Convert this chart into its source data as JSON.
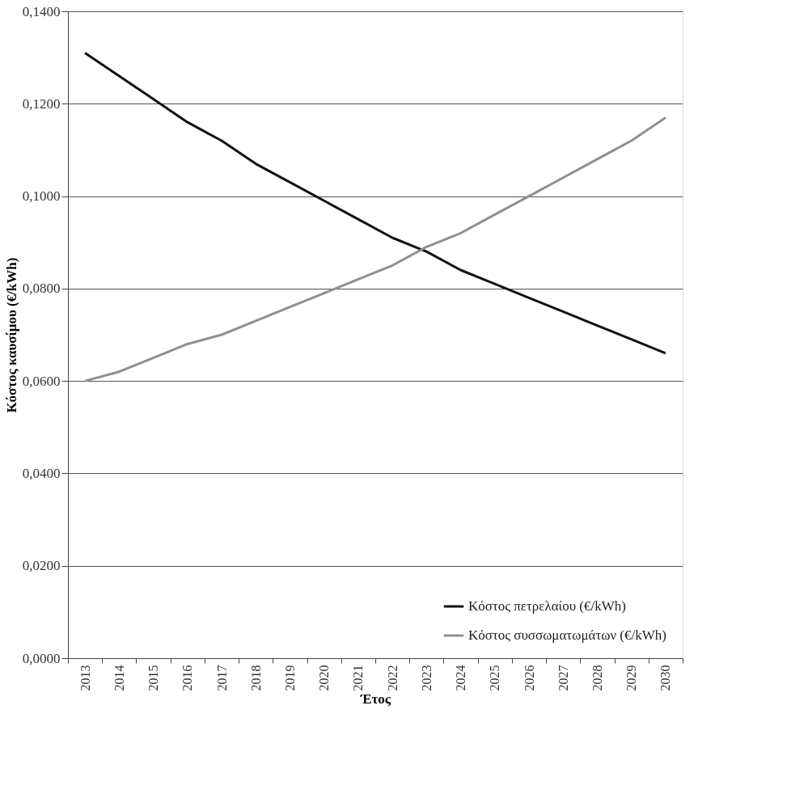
{
  "chart_data": {
    "type": "line",
    "xlabel": "Έτος",
    "ylabel": "Κόστος καυσίμου (€/kWh)",
    "categories": [
      "2013",
      "2014",
      "2015",
      "2016",
      "2017",
      "2018",
      "2019",
      "2020",
      "2021",
      "2022",
      "2023",
      "2024",
      "2025",
      "2026",
      "2027",
      "2028",
      "2029",
      "2030"
    ],
    "series": [
      {
        "name": "Κόστος πετρελαίου (€/kWh)",
        "color": "#111111",
        "values": [
          0.131,
          0.126,
          0.121,
          0.116,
          0.112,
          0.107,
          0.103,
          0.099,
          0.095,
          0.091,
          0.088,
          0.084,
          0.081,
          0.078,
          0.075,
          0.072,
          0.069,
          0.066
        ]
      },
      {
        "name": "Κόστος συσσωματωμάτων (€/kWh)",
        "color": "#8c9096",
        "values": [
          0.06,
          0.062,
          0.065,
          0.068,
          0.07,
          0.073,
          0.076,
          0.079,
          0.082,
          0.085,
          0.089,
          0.092,
          0.096,
          0.1,
          0.104,
          0.108,
          0.112,
          0.117
        ]
      }
    ],
    "ylim": [
      0,
      0.14
    ],
    "yticks": [
      {
        "value": 0,
        "label": "0,0000"
      },
      {
        "value": 0.02,
        "label": "0,0200"
      },
      {
        "value": 0.04,
        "label": "0,0400"
      },
      {
        "value": 0.06,
        "label": "0,0600"
      },
      {
        "value": 0.08,
        "label": "0,0800"
      },
      {
        "value": 0.1,
        "label": "0,1000"
      },
      {
        "value": 0.12,
        "label": "0,1200"
      },
      {
        "value": 0.14,
        "label": "0,1400"
      }
    ],
    "grid": "y",
    "legend": "bottom right",
    "marker": "none",
    "line_style": "solid"
  }
}
